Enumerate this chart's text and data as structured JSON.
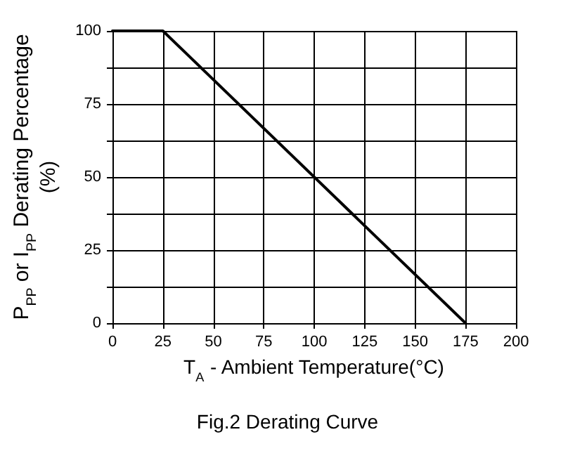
{
  "chart_data": {
    "type": "line",
    "title": "Fig.2 Derating Curve",
    "xlabel": "T$_{A}$ - Ambient Temperature(°C)",
    "ylabel": "P$_{PP}$ or I$_{PP}$ Derating Percentage\n(%)",
    "x": [
      0,
      25,
      175
    ],
    "series": [
      {
        "color": "#000000",
        "values": [
          100,
          100,
          0
        ]
      }
    ],
    "xlim": [
      0,
      200
    ],
    "xticks": [
      0,
      25,
      50,
      75,
      100,
      125,
      150,
      175,
      200
    ],
    "ylim": [
      0,
      100
    ],
    "yticks": [
      0,
      {
        "value": 12.5,
        "label": null
      },
      25,
      {
        "value": 37.5,
        "label": null
      },
      50,
      {
        "value": 62.5,
        "label": null
      },
      75,
      {
        "value": 87.5,
        "label": null
      },
      100
    ],
    "grid": true
  }
}
